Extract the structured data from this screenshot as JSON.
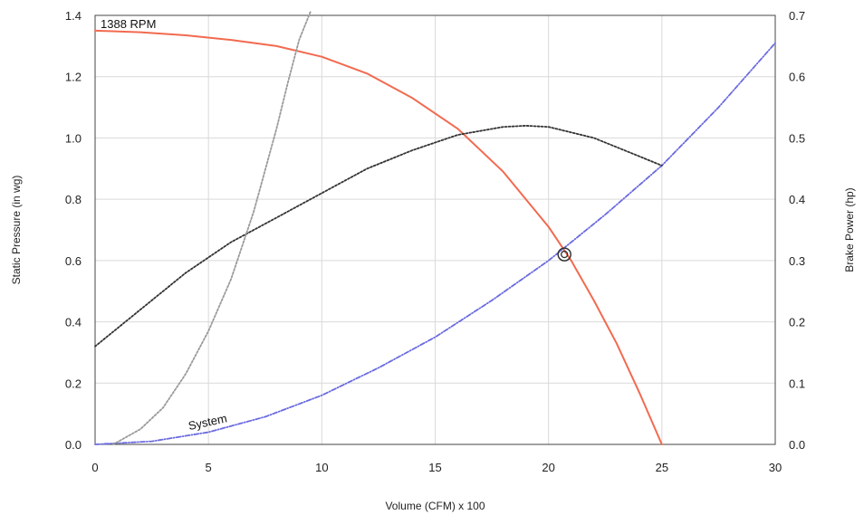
{
  "chart_data": {
    "type": "line",
    "title": "",
    "annotation_top_left": "1388 RPM",
    "xlabel": "Volume (CFM) x 100",
    "ylabel": "Static Pressure (in wg)",
    "y2label": "Brake Power (hp)",
    "xlim": [
      0,
      30
    ],
    "ylim": [
      0,
      1.4
    ],
    "y2lim": [
      0,
      0.7
    ],
    "x_ticks": [
      "0",
      "5",
      "10",
      "15",
      "20",
      "25",
      "30"
    ],
    "y_ticks": [
      "0.0",
      "0.2",
      "0.4",
      "0.6",
      "0.8",
      "1.0",
      "1.2",
      "1.4"
    ],
    "y2_ticks": [
      "0.0",
      "0.1",
      "0.2",
      "0.3",
      "0.4",
      "0.5",
      "0.6",
      "0.7"
    ],
    "grid": true,
    "series": [
      {
        "key": "fan_curve",
        "axis": "left",
        "style": "solid",
        "color": "#f26a4f",
        "x": [
          0,
          2,
          4,
          6,
          8,
          10,
          12,
          14,
          16,
          18,
          20,
          21,
          22,
          23,
          24,
          25
        ],
        "y": [
          1.35,
          1.345,
          1.335,
          1.32,
          1.3,
          1.265,
          1.21,
          1.13,
          1.03,
          0.89,
          0.71,
          0.6,
          0.47,
          0.33,
          0.17,
          0.0
        ]
      },
      {
        "key": "system_curve",
        "axis": "left",
        "style": "dash-dot",
        "color": "#6a6ae0",
        "label": "System",
        "x": [
          0,
          2.5,
          5,
          7.5,
          10,
          12.5,
          15,
          17.5,
          20,
          22.5,
          25,
          27.5,
          30
        ],
        "y": [
          0.0,
          0.01,
          0.04,
          0.09,
          0.16,
          0.25,
          0.35,
          0.47,
          0.6,
          0.75,
          0.91,
          1.1,
          1.31
        ]
      },
      {
        "key": "brake_power",
        "axis": "right",
        "style": "dotted",
        "color": "#333333",
        "x": [
          0,
          2,
          4,
          6,
          8,
          10,
          12,
          14,
          16,
          18,
          19,
          20,
          22,
          24,
          25
        ],
        "y": [
          0.16,
          0.22,
          0.28,
          0.33,
          0.37,
          0.41,
          0.45,
          0.48,
          0.505,
          0.518,
          0.52,
          0.518,
          0.5,
          0.47,
          0.455
        ]
      },
      {
        "key": "efficiency_limit",
        "axis": "left",
        "style": "dotted",
        "color": "#9a9a9a",
        "x": [
          0.8,
          2,
          3,
          4,
          5,
          6,
          7,
          8,
          8.5,
          9,
          9.5
        ],
        "y": [
          0.0,
          0.05,
          0.12,
          0.23,
          0.37,
          0.54,
          0.76,
          1.03,
          1.18,
          1.32,
          1.45
        ]
      }
    ],
    "operating_point": {
      "x": 20.7,
      "y": 0.62
    }
  }
}
